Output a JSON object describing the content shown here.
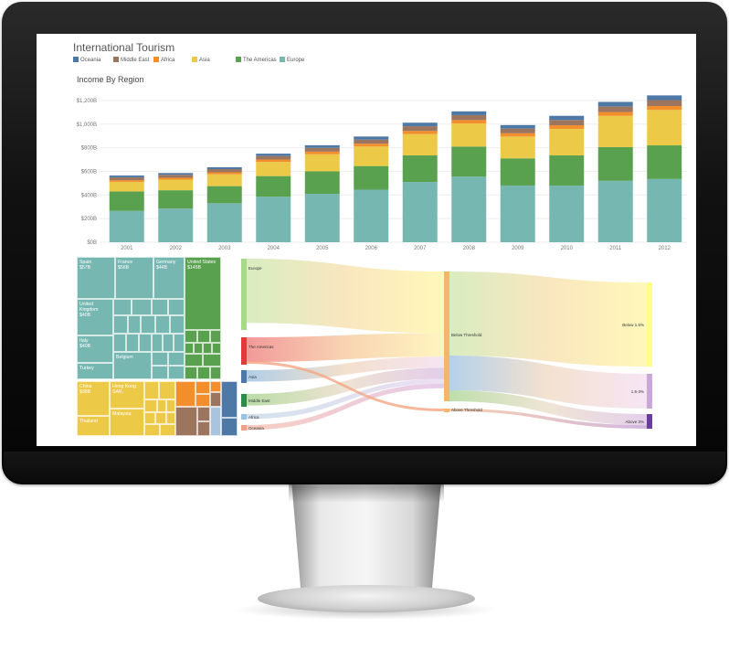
{
  "dashboard": {
    "title": "International Tourism",
    "legend": [
      {
        "label": "Oceania",
        "color": "#4e79a7"
      },
      {
        "label": "Middle East",
        "color": "#9c755f"
      },
      {
        "label": "Africa",
        "color": "#f28e2b"
      },
      {
        "label": "Asia",
        "color": "#edc948"
      },
      {
        "label": "The Americas",
        "color": "#59a14f"
      },
      {
        "label": "Europe",
        "color": "#76b7b2"
      }
    ],
    "subtitle": "Income By Region"
  },
  "chart_data": [
    {
      "type": "bar",
      "stacked": true,
      "title": "Income By Region",
      "categories": [
        "2001",
        "2002",
        "2003",
        "2004",
        "2005",
        "2006",
        "2007",
        "2008",
        "2009",
        "2010",
        "2011",
        "2012"
      ],
      "ylim": [
        0,
        1300
      ],
      "yticks": [
        "$0B",
        "$200B",
        "$400B",
        "$600B",
        "$800B",
        "$1,000B",
        "$1,200B"
      ],
      "ytick_values": [
        0,
        200,
        400,
        600,
        800,
        1000,
        1200
      ],
      "series": [
        {
          "name": "Europe",
          "color": "#76b7b2",
          "values": [
            265,
            285,
            330,
            385,
            410,
            445,
            510,
            555,
            480,
            480,
            520,
            535
          ]
        },
        {
          "name": "The Americas",
          "color": "#59a14f",
          "values": [
            165,
            155,
            145,
            175,
            190,
            200,
            225,
            255,
            230,
            255,
            285,
            285
          ]
        },
        {
          "name": "Asia",
          "color": "#edc948",
          "values": [
            80,
            90,
            100,
            120,
            145,
            165,
            180,
            195,
            185,
            225,
            265,
            300
          ]
        },
        {
          "name": "Africa",
          "color": "#f28e2b",
          "values": [
            15,
            16,
            17,
            20,
            22,
            24,
            27,
            29,
            27,
            30,
            32,
            33
          ]
        },
        {
          "name": "Middle East",
          "color": "#9c755f",
          "values": [
            25,
            25,
            27,
            30,
            32,
            35,
            40,
            42,
            40,
            45,
            48,
            50
          ]
        },
        {
          "name": "Oceania",
          "color": "#4e79a7",
          "values": [
            15,
            15,
            16,
            20,
            22,
            26,
            30,
            32,
            30,
            35,
            38,
            40
          ]
        }
      ]
    },
    {
      "type": "treemap",
      "labels": [
        {
          "name": "Spain",
          "value": "$57B"
        },
        {
          "name": "France",
          "value": "$56B"
        },
        {
          "name": "Germany",
          "value": "$44B"
        },
        {
          "name": "United States",
          "value": "$145B"
        },
        {
          "name": "United Kingdom",
          "value": "$40B"
        },
        {
          "name": "Italy",
          "value": "$40B"
        },
        {
          "name": "Belgium",
          "value": ""
        },
        {
          "name": "Turkey",
          "value": ""
        },
        {
          "name": "China",
          "value": "$38B"
        },
        {
          "name": "Hong Kong SAR,",
          "value": ""
        },
        {
          "name": "Thailand",
          "value": ""
        },
        {
          "name": "Malaysia",
          "value": ""
        }
      ]
    },
    {
      "type": "sankey",
      "sources": [
        "Europe",
        "The Americas",
        "Asia",
        "Middle East",
        "Africa",
        "Oceania"
      ],
      "middle": [
        "Below Threshold",
        "Above Threshold"
      ],
      "targets": [
        "Below 1.5%",
        "1.5-3%",
        "Above 3%"
      ]
    }
  ]
}
